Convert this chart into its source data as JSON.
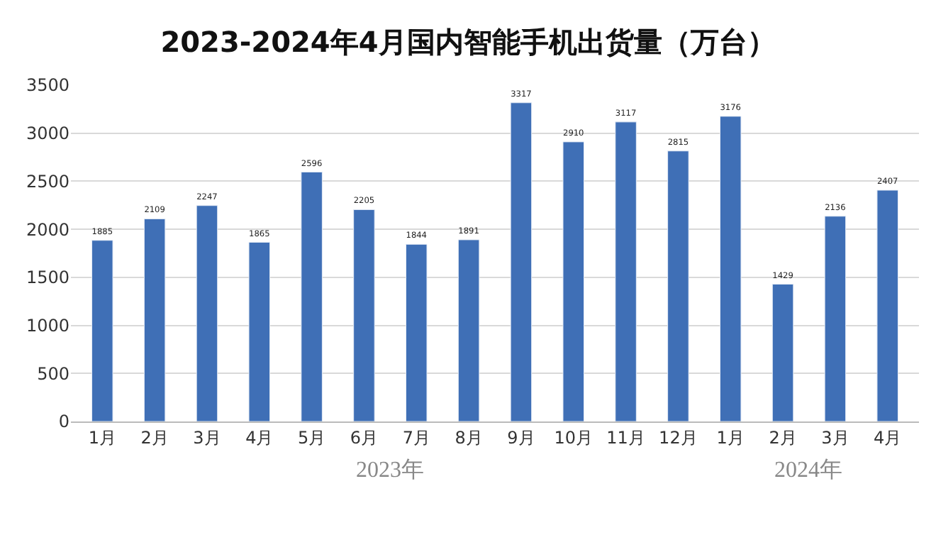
{
  "chart_data": {
    "type": "bar",
    "title": "2023-2024年4月国内智能手机出货量（万台）",
    "categories": [
      "1月",
      "2月",
      "3月",
      "4月",
      "5月",
      "6月",
      "7月",
      "8月",
      "9月",
      "10月",
      "11月",
      "12月",
      "1月",
      "2月",
      "3月",
      "4月"
    ],
    "values": [
      1885,
      2109,
      2247,
      1865,
      2596,
      2205,
      1844,
      1891,
      3317,
      2910,
      3117,
      2815,
      3176,
      1429,
      2136,
      2407
    ],
    "color": "#3f6fb6",
    "ylim": [
      0,
      3500
    ],
    "yticks": [
      0,
      500,
      1000,
      1500,
      2000,
      2500,
      3000,
      3500
    ],
    "grid": "y",
    "data_labels": true,
    "legend": false,
    "annotations": [
      "2023年",
      "2024年"
    ]
  }
}
